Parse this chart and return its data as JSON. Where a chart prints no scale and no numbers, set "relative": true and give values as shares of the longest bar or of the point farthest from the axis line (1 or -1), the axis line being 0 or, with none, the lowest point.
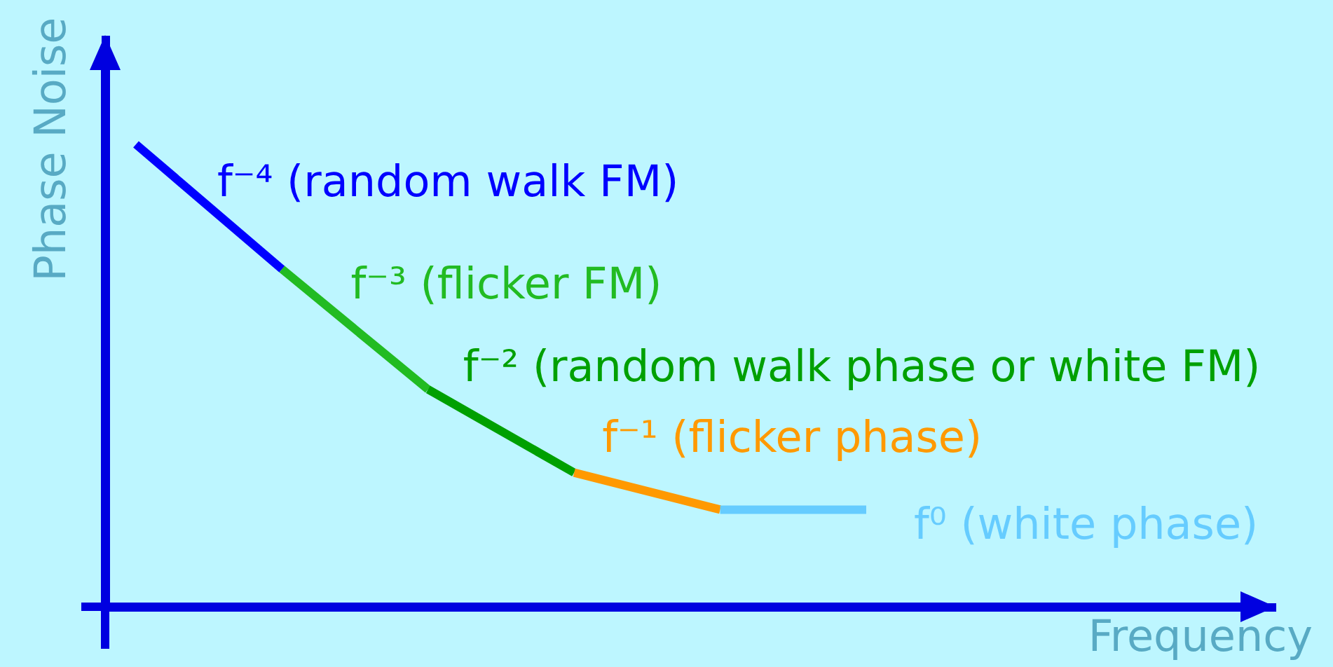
{
  "chart_data": {
    "type": "line",
    "relative": true,
    "xlabel": "Frequency",
    "ylabel": "Phase Noise",
    "categories": [
      null,
      null,
      null,
      null,
      null,
      null
    ],
    "series": [
      {
        "name": "f⁻⁴ (random walk FM)",
        "color": "#0000ff",
        "values": [
          1,
          0.73,
          null,
          null,
          null,
          null
        ]
      },
      {
        "name": "f⁻³ (flicker FM)",
        "color": "#22bb22",
        "values": [
          null,
          0.73,
          0.47,
          null,
          null,
          null
        ]
      },
      {
        "name": "f⁻² (random walk phase or white FM)",
        "color": "#00a000",
        "values": [
          null,
          null,
          0.47,
          0.29,
          null,
          null
        ]
      },
      {
        "name": "f⁻¹ (flicker phase)",
        "color": "#ff9900",
        "values": [
          null,
          null,
          null,
          0.29,
          0.21,
          null
        ]
      },
      {
        "name": "f⁰ (white phase)",
        "color": "#66ccff",
        "values": [
          null,
          null,
          null,
          null,
          0.21,
          0.21
        ]
      }
    ]
  }
}
